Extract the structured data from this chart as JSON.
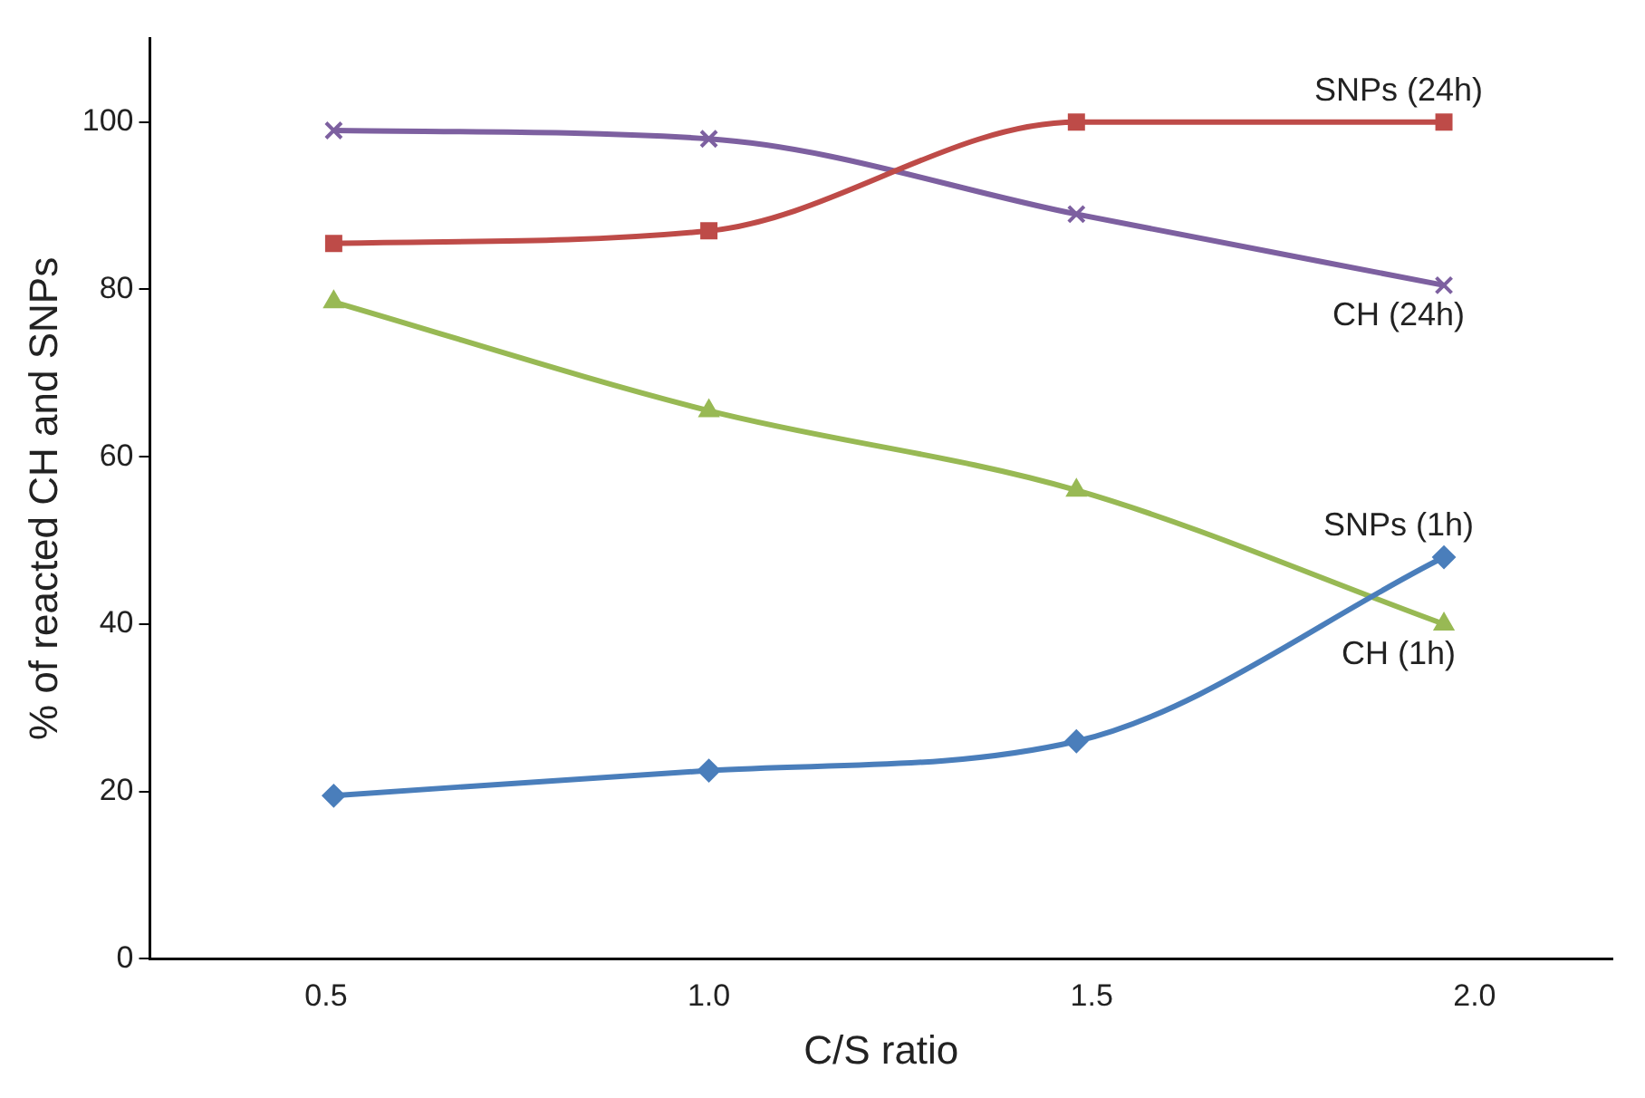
{
  "chart_data": {
    "type": "line",
    "xlabel": "C/S ratio",
    "ylabel": "% of reacted CH and SNPs",
    "xlim": [
      0.27,
      2.18
    ],
    "xticks": [
      {
        "value": 0.5,
        "label": "0.5"
      },
      {
        "value": 1,
        "label": "1.0"
      },
      {
        "value": 1.5,
        "label": "1.5"
      },
      {
        "value": 2,
        "label": "2.0"
      }
    ],
    "ylim": [
      0,
      110
    ],
    "yticks": [
      0,
      20,
      40,
      60,
      80,
      100
    ],
    "grid": false,
    "legend": false,
    "x": [
      0.51,
      1.0,
      1.48,
      1.96
    ],
    "series": [
      {
        "name": "SNPs (24h)",
        "color": "#be4b48",
        "marker": "square",
        "values": [
          85.5,
          87,
          100,
          100
        ]
      },
      {
        "name": "CH (24h)",
        "color": "#7d60a0",
        "marker": "cross",
        "values": [
          99,
          98,
          89,
          80.5
        ]
      },
      {
        "name": "SNPs (1h)",
        "color": "#4a7ebb",
        "marker": "diamond",
        "values": [
          19.5,
          22.5,
          26,
          48
        ]
      },
      {
        "name": "CH (1h)",
        "color": "#98b954",
        "marker": "triangle",
        "values": [
          78.5,
          65.5,
          56,
          40
        ]
      }
    ]
  }
}
